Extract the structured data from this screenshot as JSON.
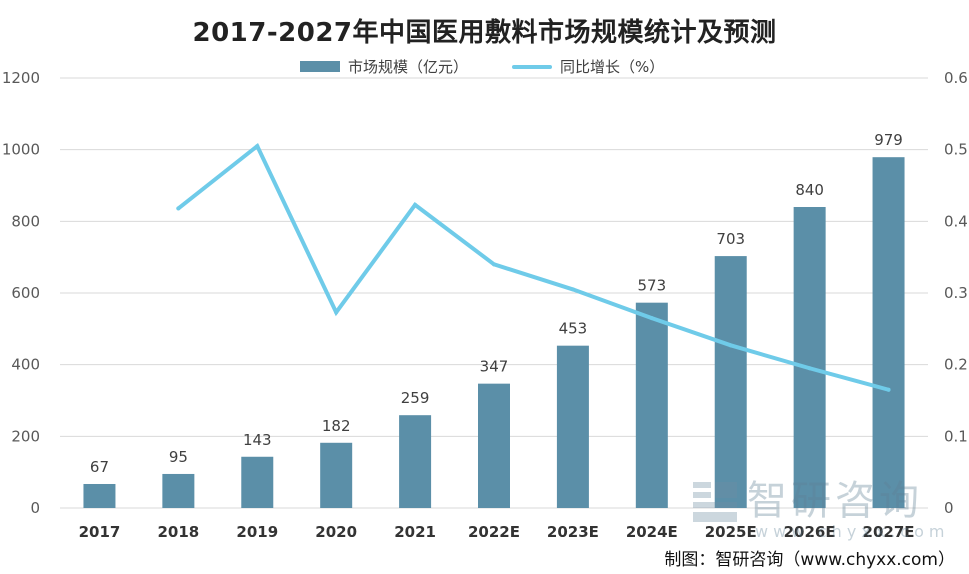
{
  "chart_data": {
    "type": "bar",
    "title": "2017-2027年中国医用敷料市场规模统计及预测",
    "categories": [
      "2017",
      "2018",
      "2019",
      "2020",
      "2021",
      "2022E",
      "2023E",
      "2024E",
      "2025E",
      "2026E",
      "2027E"
    ],
    "series": [
      {
        "name": "市场规模（亿元）",
        "type": "bar",
        "axis": "left",
        "color": "#5b8fa8",
        "values": [
          67,
          95,
          143,
          182,
          259,
          347,
          453,
          573,
          703,
          840,
          979
        ],
        "labels": [
          "67",
          "95",
          "143",
          "182",
          "259",
          "347",
          "453",
          "573",
          "703",
          "840",
          "979"
        ]
      },
      {
        "name": "同比增长（%）",
        "type": "line",
        "axis": "right",
        "color": "#6fcbe9",
        "values": [
          null,
          0.418,
          0.505,
          0.273,
          0.423,
          0.34,
          0.305,
          0.265,
          0.227,
          0.195,
          0.165
        ]
      }
    ],
    "y_left": {
      "min": 0,
      "max": 1200,
      "ticks": [
        "0",
        "200",
        "400",
        "600",
        "800",
        "1000",
        "1200"
      ]
    },
    "y_right": {
      "min": 0,
      "max": 0.6,
      "ticks": [
        "0",
        "0.1",
        "0.2",
        "0.3",
        "0.4",
        "0.5",
        "0.6"
      ]
    },
    "grid": true,
    "legend_position": "top"
  },
  "credit": "制图：智研咨询（www.chyxx.com）",
  "watermark": {
    "main": "智研咨询",
    "sub": "www.chyxx.com"
  },
  "colors": {
    "bar": "#5b8fa8",
    "line": "#6fcbe9",
    "grid": "#d9d9d9",
    "axis_text": "#595959"
  }
}
